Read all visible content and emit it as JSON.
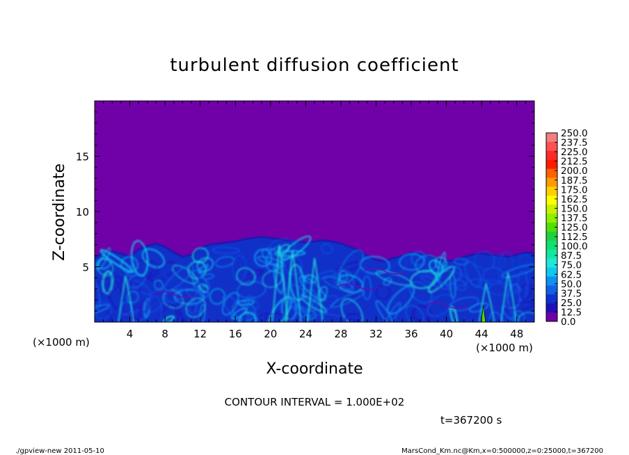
{
  "chart_data": {
    "type": "heatmap",
    "title": "turbulent diffusion coefficient",
    "xlabel": "X-coordinate",
    "ylabel": "Z-coordinate",
    "x_unit": "(×1000 m)",
    "y_unit": "(×1000 m)",
    "xlim": [
      0,
      50
    ],
    "ylim": [
      0,
      20
    ],
    "x_ticks": [
      4,
      8,
      12,
      16,
      20,
      24,
      28,
      32,
      36,
      40,
      44,
      48
    ],
    "y_ticks": [
      5,
      10,
      15
    ],
    "colorbar_labels": [
      "250.0",
      "237.5",
      "225.0",
      "212.5",
      "200.0",
      "187.5",
      "175.0",
      "162.5",
      "150.0",
      "137.5",
      "125.0",
      "112.5",
      "100.0",
      "87.5",
      "75.0",
      "62.5",
      "50.0",
      "37.5",
      "25.0",
      "12.5",
      "0.0"
    ],
    "colorbar_colors": [
      "#f08080",
      "#ff5050",
      "#ff2a2a",
      "#ff1a00",
      "#ff6000",
      "#ff9a00",
      "#ffd000",
      "#ffff00",
      "#c8f000",
      "#8cf000",
      "#50e000",
      "#20d040",
      "#10e070",
      "#10e8a0",
      "#20e8d8",
      "#10c8f0",
      "#1090f0",
      "#1060e8",
      "#1030d0",
      "#2010b8",
      "#7000a8"
    ],
    "field_top": [
      5.8,
      6.3,
      6.4,
      6.2,
      5.9,
      6.6,
      6.9,
      7.1,
      6.8,
      6.3,
      5.9,
      6.1,
      6.7,
      7.0,
      7.1,
      7.2,
      7.3,
      7.5,
      7.6,
      7.7,
      7.6,
      7.5,
      7.4,
      7.3,
      7.2,
      7.3,
      7.4,
      7.3,
      7.1,
      6.8,
      6.5,
      6.0,
      5.6,
      5.5,
      5.8,
      6.0,
      6.3,
      6.2,
      6.0,
      5.7,
      5.5,
      5.6,
      5.9,
      6.1,
      6.2,
      6.1,
      6.0,
      5.9,
      6.1,
      6.3,
      6.2
    ],
    "max_value": 250.0,
    "contour_interval": "CONTOUR INTERVAL = 1.000E+02",
    "time_label": "t=367200 s"
  },
  "footer": {
    "left": "./gpview-new   2011-05-10",
    "right": "MarsCond_Km.nc@Km,x=0:500000,z=0:25000,t=367200"
  },
  "colors": {
    "background": "#7000a8",
    "axes": "#000000"
  }
}
